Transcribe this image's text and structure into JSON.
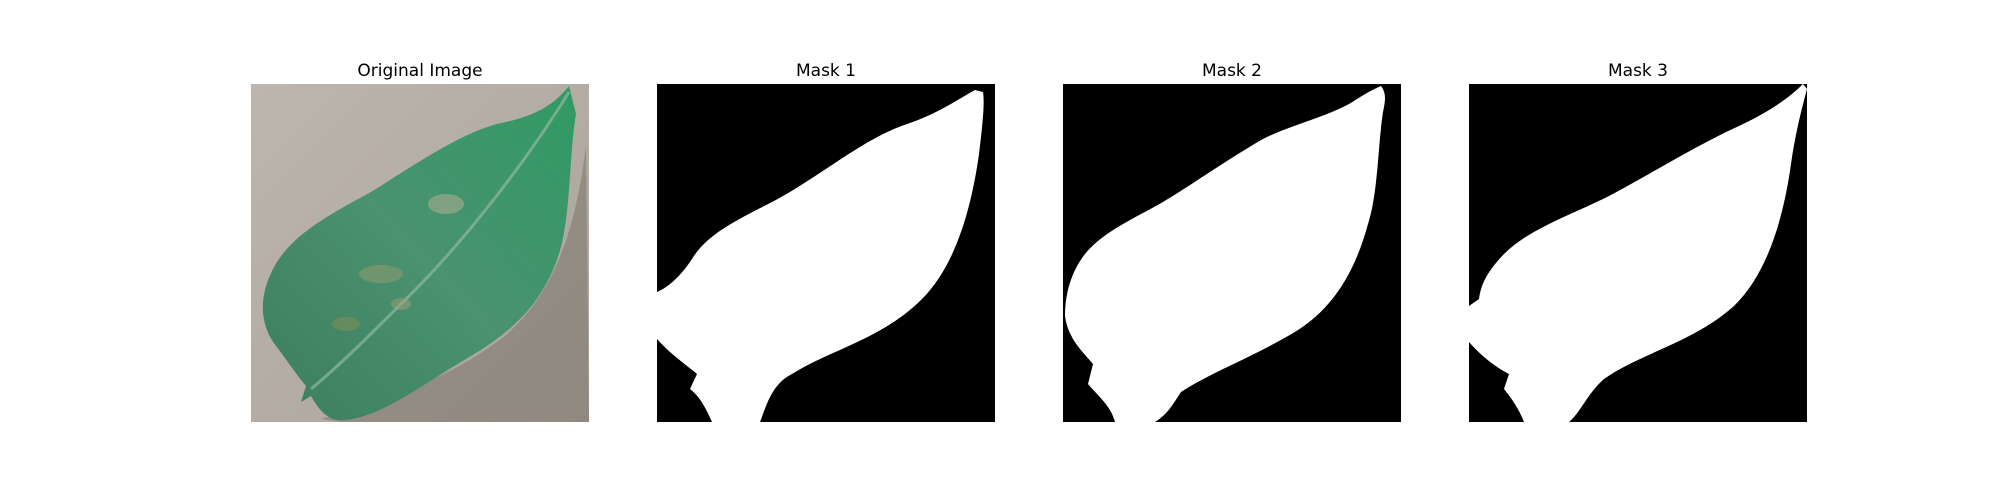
{
  "figure": {
    "panels": [
      {
        "id": "original",
        "title": "Original Image",
        "kind": "photo"
      },
      {
        "id": "mask1",
        "title": "Mask 1",
        "kind": "mask"
      },
      {
        "id": "mask2",
        "title": "Mask 2",
        "kind": "mask"
      },
      {
        "id": "mask3",
        "title": "Mask 3",
        "kind": "mask"
      }
    ],
    "colors": {
      "background": "#ffffff",
      "mask_background": "#000000",
      "mask_foreground": "#ffffff",
      "photo_background": "#b5aea6",
      "leaf": "#3f8a62",
      "leaf_shadow": "#6f6860"
    }
  }
}
